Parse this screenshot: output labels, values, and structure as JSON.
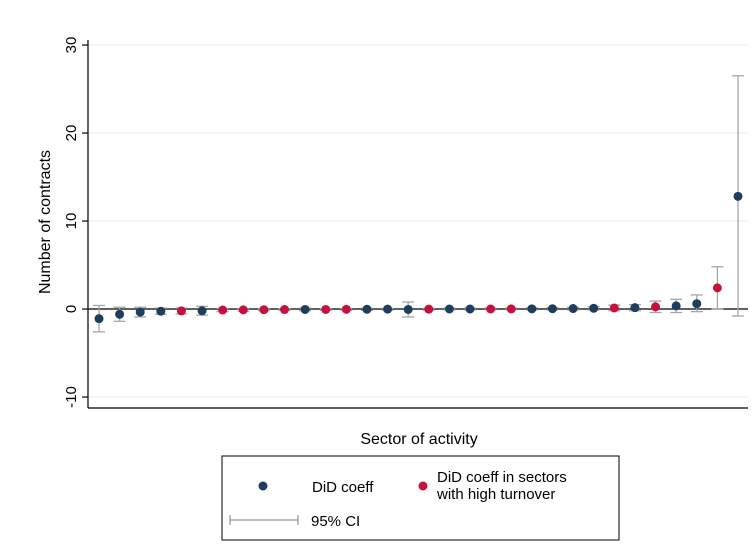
{
  "chart_data": {
    "type": "scatter",
    "title": "",
    "xlabel": "Sector of activity",
    "ylabel": "Number of contracts",
    "ylim": [
      -11,
      31
    ],
    "yticks": [
      -10,
      0,
      10,
      20,
      30
    ],
    "grid": true,
    "legend_position": "bottom",
    "colors": {
      "did": "#1f3d5c",
      "high_turnover": "#c8103e",
      "ci": "#a6a6a6",
      "grid": "#eaeaea"
    },
    "x": [
      1,
      2,
      3,
      4,
      5,
      6,
      7,
      8,
      9,
      10,
      11,
      12,
      13,
      14,
      15,
      16,
      17,
      18,
      19,
      20,
      21,
      22,
      23,
      24,
      25,
      26,
      27,
      28,
      29,
      30,
      31,
      32
    ],
    "series": [
      {
        "name": "DiD coeff",
        "color": "#1f3d5c",
        "points": [
          {
            "x": 1,
            "y": -1.1,
            "lo": -2.6,
            "hi": 0.4
          },
          {
            "x": 2,
            "y": -0.6,
            "lo": -1.4,
            "hi": 0.2
          },
          {
            "x": 3,
            "y": -0.35,
            "lo": -0.9,
            "hi": 0.2
          },
          {
            "x": 4,
            "y": -0.25,
            "lo": -0.6,
            "hi": 0.1
          },
          {
            "x": 6,
            "y": -0.2,
            "lo": -0.7,
            "hi": 0.3
          },
          {
            "x": 11,
            "y": -0.05,
            "lo": -0.2,
            "hi": 0.1
          },
          {
            "x": 14,
            "y": -0.03,
            "lo": -0.15,
            "hi": 0.1
          },
          {
            "x": 15,
            "y": -0.02,
            "lo": -0.12,
            "hi": 0.08
          },
          {
            "x": 16,
            "y": -0.05,
            "lo": -0.9,
            "hi": 0.8
          },
          {
            "x": 18,
            "y": 0.0,
            "lo": -0.1,
            "hi": 0.1
          },
          {
            "x": 19,
            "y": 0.0,
            "lo": -0.1,
            "hi": 0.1
          },
          {
            "x": 22,
            "y": 0.02,
            "lo": -0.1,
            "hi": 0.14
          },
          {
            "x": 23,
            "y": 0.03,
            "lo": -0.1,
            "hi": 0.15
          },
          {
            "x": 24,
            "y": 0.05,
            "lo": -0.1,
            "hi": 0.2
          },
          {
            "x": 25,
            "y": 0.08,
            "lo": -0.1,
            "hi": 0.26
          },
          {
            "x": 27,
            "y": 0.15,
            "lo": -0.2,
            "hi": 0.5
          },
          {
            "x": 29,
            "y": 0.35,
            "lo": -0.4,
            "hi": 1.1
          },
          {
            "x": 30,
            "y": 0.6,
            "lo": -0.3,
            "hi": 1.6
          },
          {
            "x": 32,
            "y": 12.8,
            "lo": -0.8,
            "hi": 26.5
          }
        ]
      },
      {
        "name": "DiD coeff in sectors with high turnover",
        "color": "#c8103e",
        "points": [
          {
            "x": 5,
            "y": -0.22,
            "lo": -0.55,
            "hi": 0.1
          },
          {
            "x": 7,
            "y": -0.12,
            "lo": -0.3,
            "hi": 0.06
          },
          {
            "x": 8,
            "y": -0.1,
            "lo": -0.25,
            "hi": 0.05
          },
          {
            "x": 9,
            "y": -0.08,
            "lo": -0.2,
            "hi": 0.04
          },
          {
            "x": 10,
            "y": -0.06,
            "lo": -0.16,
            "hi": 0.04
          },
          {
            "x": 12,
            "y": -0.05,
            "lo": -0.15,
            "hi": 0.05
          },
          {
            "x": 13,
            "y": -0.04,
            "lo": -0.14,
            "hi": 0.06
          },
          {
            "x": 17,
            "y": -0.02,
            "lo": -0.12,
            "hi": 0.08
          },
          {
            "x": 20,
            "y": 0.0,
            "lo": -0.1,
            "hi": 0.1
          },
          {
            "x": 21,
            "y": 0.01,
            "lo": -0.09,
            "hi": 0.11
          },
          {
            "x": 26,
            "y": 0.12,
            "lo": -0.2,
            "hi": 0.45
          },
          {
            "x": 28,
            "y": 0.25,
            "lo": -0.4,
            "hi": 0.9
          },
          {
            "x": 31,
            "y": 2.4,
            "lo": 0.0,
            "hi": 4.8
          }
        ]
      }
    ],
    "legend": {
      "did_label": "DiD coeff",
      "high_turnover_label_line1": "DiD coeff in sectors",
      "high_turnover_label_line2": "with high turnover",
      "ci_label": "95% CI"
    }
  }
}
